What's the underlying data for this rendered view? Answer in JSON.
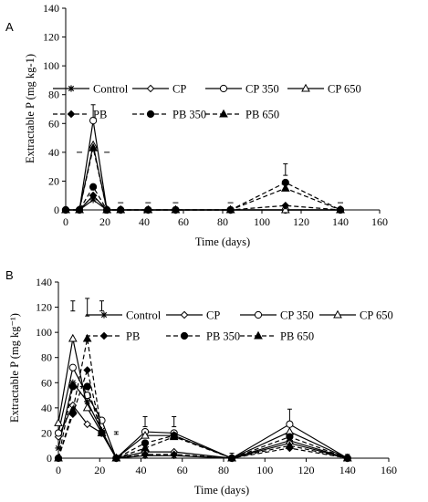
{
  "figure": {
    "background": "#ffffff",
    "ink": "#000000"
  },
  "chart_data": [
    {
      "panel": "A",
      "type": "line",
      "xlabel": "Time (days)",
      "ylabel": "Extractable P  (mg kg-1)",
      "xlim": [
        0,
        160
      ],
      "ylim": [
        0,
        140
      ],
      "x_ticks": [
        0,
        20,
        40,
        60,
        80,
        100,
        120,
        140,
        160
      ],
      "y_ticks": [
        0,
        20,
        40,
        60,
        80,
        100,
        120,
        140
      ],
      "legend_placement": "right",
      "x": [
        0,
        7,
        14,
        21,
        28,
        42,
        56,
        84,
        112,
        140
      ],
      "series": [
        {
          "name": "Control",
          "marker": "star",
          "dash": "solid",
          "values": [
            0,
            0,
            7,
            0,
            0,
            0,
            0,
            0,
            0,
            0
          ]
        },
        {
          "name": "CP",
          "marker": "diamond-open",
          "dash": "solid",
          "values": [
            0,
            0,
            10,
            0,
            0,
            0,
            0,
            0,
            0,
            0
          ]
        },
        {
          "name": "CP 350",
          "marker": "circle-open",
          "dash": "solid",
          "values": [
            0,
            0,
            62,
            0,
            0,
            0,
            0,
            0,
            0,
            0
          ]
        },
        {
          "name": "CP 650",
          "marker": "triangle-open",
          "dash": "solid",
          "values": [
            0,
            0,
            45,
            0,
            0,
            0,
            0,
            0,
            0,
            0
          ]
        },
        {
          "name": "PB",
          "marker": "diamond-filled",
          "dash": "dashed",
          "values": [
            0,
            0,
            10,
            0,
            0,
            0,
            0,
            0,
            3,
            0
          ]
        },
        {
          "name": "PB 350",
          "marker": "circle-filled",
          "dash": "dashed",
          "values": [
            0,
            0,
            16,
            0,
            0,
            0,
            0,
            0,
            19,
            0
          ]
        },
        {
          "name": "PB 650",
          "marker": "triangle-filled",
          "dash": "dashed",
          "values": [
            0,
            0,
            43,
            0,
            0,
            0,
            0,
            0,
            15,
            0
          ]
        }
      ],
      "error_bars": [
        {
          "x": 14,
          "low": 64,
          "high": 73
        },
        {
          "x": 7,
          "value": 40
        },
        {
          "x": 21,
          "value": 40
        },
        {
          "x": 28,
          "value": 5
        },
        {
          "x": 42,
          "value": 5
        },
        {
          "x": 56,
          "value": 5
        },
        {
          "x": 84,
          "value": 5
        },
        {
          "x": 112,
          "low": 24,
          "high": 32
        },
        {
          "x": 140,
          "value": 5
        }
      ]
    },
    {
      "panel": "B",
      "type": "line",
      "xlabel": "Time (days)",
      "ylabel": "Extractable P  (mg kg⁻¹)",
      "xlim": [
        0,
        160
      ],
      "ylim": [
        0,
        140
      ],
      "x_ticks": [
        0,
        20,
        40,
        60,
        80,
        100,
        120,
        140,
        160
      ],
      "y_ticks": [
        0,
        20,
        40,
        60,
        80,
        100,
        120,
        140
      ],
      "legend_placement": "right",
      "x": [
        0,
        7,
        14,
        21,
        28,
        42,
        56,
        84,
        112,
        140
      ],
      "series": [
        {
          "name": "Control",
          "marker": "star",
          "dash": "solid",
          "values": [
            8,
            60,
            45,
            22,
            0,
            2,
            2,
            0,
            14,
            0
          ]
        },
        {
          "name": "CP",
          "marker": "diamond-open",
          "dash": "solid",
          "values": [
            17,
            42,
            27,
            20,
            0,
            5,
            5,
            0,
            12,
            0
          ]
        },
        {
          "name": "CP 350",
          "marker": "circle-open",
          "dash": "solid",
          "values": [
            20,
            72,
            50,
            30,
            0,
            21,
            20,
            0,
            27,
            0
          ]
        },
        {
          "name": "CP 650",
          "marker": "triangle-open",
          "dash": "solid",
          "values": [
            28,
            95,
            40,
            20,
            0,
            18,
            18,
            0,
            21,
            0
          ]
        },
        {
          "name": "PB",
          "marker": "diamond-filled",
          "dash": "dashed",
          "values": [
            0,
            35,
            70,
            20,
            0,
            3,
            3,
            0,
            8,
            0
          ]
        },
        {
          "name": "PB 350",
          "marker": "circle-filled",
          "dash": "dashed",
          "values": [
            0,
            57,
            57,
            20,
            0,
            12,
            18,
            0,
            17,
            0
          ]
        },
        {
          "name": "PB 650",
          "marker": "triangle-filled",
          "dash": "dashed",
          "values": [
            0,
            38,
            95,
            20,
            0,
            8,
            17,
            0,
            10,
            0
          ]
        }
      ],
      "error_bars": [
        {
          "x": 7,
          "low": 117,
          "high": 125
        },
        {
          "x": 14,
          "low": 113,
          "high": 127
        },
        {
          "x": 21,
          "low": 117,
          "high": 125
        },
        {
          "x": 28,
          "low": 19,
          "high": 21
        },
        {
          "x": 42,
          "low": 25,
          "high": 33
        },
        {
          "x": 56,
          "low": 25,
          "high": 33
        },
        {
          "x": 84,
          "low": 2,
          "high": 4
        },
        {
          "x": 112,
          "low": 27,
          "high": 39
        },
        {
          "x": 140,
          "low": 1,
          "high": 3
        }
      ]
    }
  ]
}
